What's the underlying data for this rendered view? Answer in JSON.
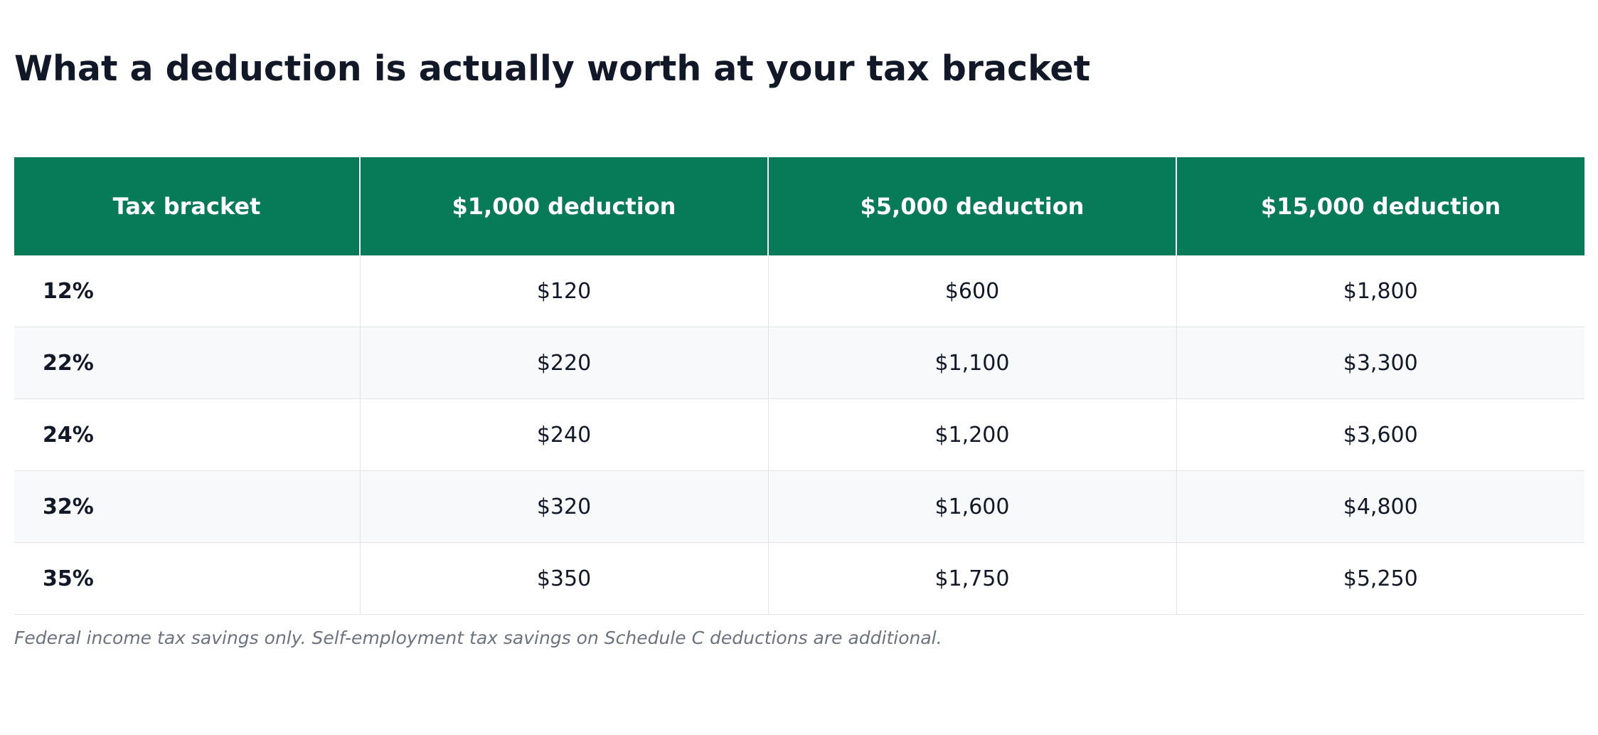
{
  "title": "What a deduction is actually worth at your tax bracket",
  "colors": {
    "header_bg": "#077a57",
    "header_text": "#ffffff",
    "title_text": "#111827",
    "stripe": "#f8f9fb",
    "footnote_text": "#6b7280"
  },
  "chart_data": {
    "type": "table",
    "title": "What a deduction is actually worth at your tax bracket",
    "columns": [
      "Tax bracket",
      "$1,000 deduction",
      "$5,000 deduction",
      "$15,000 deduction"
    ],
    "rows": [
      [
        "12%",
        "$120",
        "$600",
        "$1,800"
      ],
      [
        "22%",
        "$220",
        "$1,100",
        "$3,300"
      ],
      [
        "24%",
        "$240",
        "$1,200",
        "$3,600"
      ],
      [
        "32%",
        "$320",
        "$1,600",
        "$4,800"
      ],
      [
        "35%",
        "$350",
        "$1,750",
        "$5,250"
      ]
    ]
  },
  "footnote": "Federal income tax savings only. Self-employment tax savings on Schedule C deductions are additional."
}
